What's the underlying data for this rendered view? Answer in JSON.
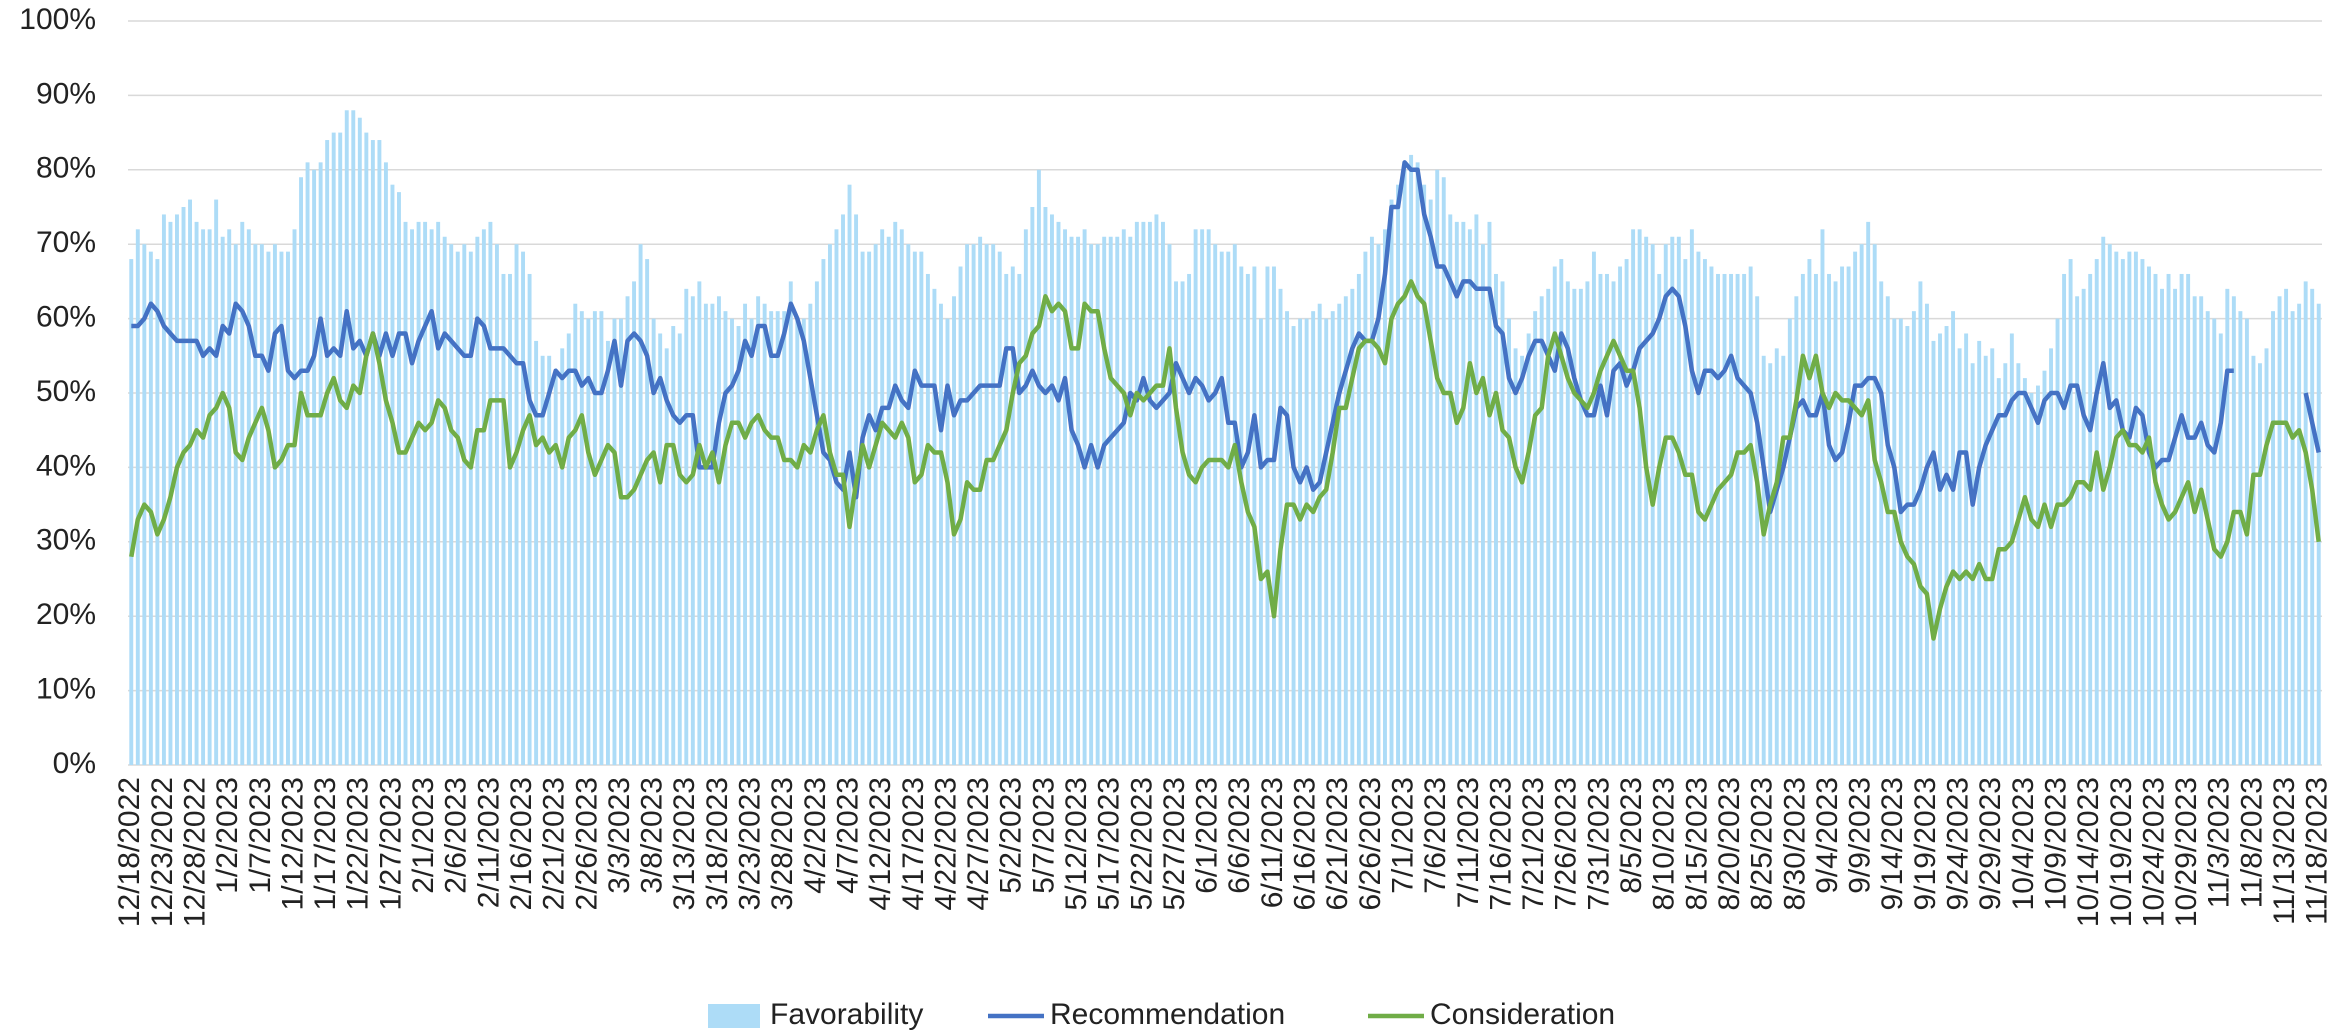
{
  "chart_data": {
    "type": "bar-line",
    "categories": [
      "12/18/2022",
      null,
      null,
      null,
      null,
      "12/23/2022",
      null,
      null,
      null,
      null,
      "12/28/2022",
      null,
      null,
      null,
      null,
      "1/2/2023",
      null,
      null,
      null,
      null,
      "1/7/2023",
      null,
      null,
      null,
      null,
      "1/12/2023",
      null,
      null,
      null,
      null,
      "1/17/2023",
      null,
      null,
      null,
      null,
      "1/22/2023",
      null,
      null,
      null,
      null,
      "1/27/2023",
      null,
      null,
      null,
      null,
      "2/1/2023",
      null,
      null,
      null,
      null,
      "2/6/2023",
      null,
      null,
      null,
      null,
      "2/11/2023",
      null,
      null,
      null,
      null,
      "2/16/2023",
      null,
      null,
      null,
      null,
      "2/21/2023",
      null,
      null,
      null,
      null,
      "2/26/2023",
      null,
      null,
      null,
      null,
      "3/3/2023",
      null,
      null,
      null,
      null,
      "3/8/2023",
      null,
      null,
      null,
      null,
      "3/13/2023",
      null,
      null,
      null,
      null,
      "3/18/2023",
      null,
      null,
      null,
      null,
      "3/23/2023",
      null,
      null,
      null,
      null,
      "3/28/2023",
      null,
      null,
      null,
      null,
      "4/2/2023",
      null,
      null,
      null,
      null,
      "4/7/2023",
      null,
      null,
      null,
      null,
      "4/12/2023",
      null,
      null,
      null,
      null,
      "4/17/2023",
      null,
      null,
      null,
      null,
      "4/22/2023",
      null,
      null,
      null,
      null,
      "4/27/2023",
      null,
      null,
      null,
      null,
      "5/2/2023",
      null,
      null,
      null,
      null,
      "5/7/2023",
      null,
      null,
      null,
      null,
      "5/12/2023",
      null,
      null,
      null,
      null,
      "5/17/2023",
      null,
      null,
      null,
      null,
      "5/22/2023",
      null,
      null,
      null,
      null,
      "5/27/2023",
      null,
      null,
      null,
      null,
      "6/1/2023",
      null,
      null,
      null,
      null,
      "6/6/2023",
      null,
      null,
      null,
      null,
      "6/11/2023",
      null,
      null,
      null,
      null,
      "6/16/2023",
      null,
      null,
      null,
      null,
      "6/21/2023",
      null,
      null,
      null,
      null,
      "6/26/2023",
      null,
      null,
      null,
      null,
      "7/1/2023",
      null,
      null,
      null,
      null,
      "7/6/2023",
      null,
      null,
      null,
      null,
      "7/11/2023",
      null,
      null,
      null,
      null,
      "7/16/2023",
      null,
      null,
      null,
      null,
      "7/21/2023",
      null,
      null,
      null,
      null,
      "7/26/2023",
      null,
      null,
      null,
      null,
      "7/31/2023",
      null,
      null,
      null,
      null,
      "8/5/2023",
      null,
      null,
      null,
      null,
      "8/10/2023",
      null,
      null,
      null,
      null,
      "8/15/2023",
      null,
      null,
      null,
      null,
      "8/20/2023",
      null,
      null,
      null,
      null,
      "8/25/2023",
      null,
      null,
      null,
      null,
      "8/30/2023",
      null,
      null,
      null,
      null,
      "9/4/2023",
      null,
      null,
      null,
      null,
      "9/9/2023",
      null,
      null,
      null,
      null,
      "9/14/2023",
      null,
      null,
      null,
      null,
      "9/19/2023",
      null,
      null,
      null,
      null,
      "9/24/2023",
      null,
      null,
      null,
      null,
      "9/29/2023",
      null,
      null,
      null,
      null,
      "10/4/2023",
      null,
      null,
      null,
      null,
      "10/9/2023",
      null,
      null,
      null,
      null,
      "10/14/2023",
      null,
      null,
      null,
      null,
      "10/19/2023",
      null,
      null,
      null,
      null,
      "10/24/2023",
      null,
      null,
      null,
      null,
      "10/29/2023",
      null,
      null,
      null,
      null,
      "11/3/2023",
      null,
      null,
      null,
      null,
      "11/8/2023",
      null,
      null,
      null,
      null,
      "11/13/2023",
      null,
      null,
      null,
      null,
      "11/18/2023"
    ],
    "series": [
      {
        "name": "Favorability",
        "kind": "bar",
        "color": "#addcf7",
        "values": [
          68,
          72,
          70,
          69,
          68,
          74,
          73,
          74,
          75,
          76,
          73,
          72,
          72,
          76,
          71,
          72,
          70,
          73,
          72,
          70,
          70,
          69,
          70,
          69,
          69,
          72,
          79,
          81,
          80,
          81,
          84,
          85,
          85,
          88,
          88,
          87,
          85,
          84,
          84,
          81,
          78,
          77,
          73,
          72,
          73,
          73,
          72,
          73,
          71,
          70,
          69,
          70,
          69,
          71,
          72,
          73,
          70,
          66,
          66,
          70,
          69,
          66,
          57,
          55,
          55,
          53,
          56,
          58,
          62,
          61,
          60,
          61,
          61,
          57,
          60,
          60,
          63,
          65,
          70,
          68,
          60,
          58,
          56,
          59,
          58,
          64,
          63,
          65,
          62,
          62,
          63,
          61,
          60,
          59,
          62,
          60,
          63,
          62,
          61,
          61,
          61,
          65,
          60,
          60,
          62,
          65,
          68,
          70,
          72,
          74,
          78,
          74,
          69,
          69,
          70,
          72,
          71,
          73,
          72,
          70,
          69,
          69,
          66,
          64,
          62,
          60,
          63,
          67,
          70,
          70,
          71,
          70,
          70,
          69,
          66,
          67,
          66,
          72,
          75,
          80,
          75,
          74,
          73,
          72,
          71,
          71,
          72,
          70,
          70,
          71,
          71,
          71,
          72,
          71,
          73,
          73,
          73,
          74,
          73,
          70,
          65,
          65,
          66,
          72,
          72,
          72,
          70,
          69,
          69,
          70,
          67,
          66,
          67,
          60,
          67,
          67,
          64,
          61,
          59,
          60,
          60,
          61,
          62,
          60,
          61,
          62,
          63,
          64,
          66,
          69,
          71,
          70,
          72,
          76,
          78,
          80,
          82,
          81,
          78,
          76,
          80,
          79,
          74,
          73,
          73,
          72,
          74,
          70,
          73,
          66,
          65,
          60,
          56,
          55,
          58,
          61,
          63,
          64,
          67,
          68,
          65,
          64,
          64,
          65,
          69,
          66,
          66,
          65,
          67,
          68,
          72,
          72,
          71,
          70,
          66,
          70,
          71,
          71,
          68,
          72,
          69,
          68,
          67,
          66,
          66,
          66,
          66,
          66,
          67,
          63,
          55,
          54,
          56,
          55,
          60,
          63,
          66,
          68,
          66,
          72,
          66,
          65,
          67,
          67,
          69,
          70,
          73,
          70,
          65,
          63,
          60,
          60,
          59,
          61,
          65,
          62,
          57,
          58,
          59,
          61,
          56,
          58,
          54,
          57,
          55,
          56,
          52,
          54,
          58,
          54,
          52,
          50,
          51,
          53,
          56,
          60,
          66,
          68,
          63,
          64,
          66,
          68,
          71,
          70,
          69,
          68,
          69,
          69,
          68,
          67,
          66,
          64,
          66,
          64,
          66,
          66,
          63,
          63,
          61,
          60,
          58,
          64,
          63,
          61,
          60,
          55,
          54,
          56,
          61,
          63,
          64,
          61,
          62,
          65,
          64,
          62
        ]
      },
      {
        "name": "Recommendation",
        "kind": "line",
        "color": "#4472c4",
        "values": [
          59,
          59,
          60,
          62,
          61,
          59,
          58,
          57,
          57,
          57,
          57,
          55,
          56,
          55,
          59,
          58,
          62,
          61,
          59,
          55,
          55,
          53,
          58,
          59,
          53,
          52,
          53,
          53,
          55,
          60,
          55,
          56,
          55,
          61,
          56,
          57,
          55,
          58,
          55,
          58,
          55,
          58,
          58,
          54,
          57,
          59,
          61,
          56,
          58,
          57,
          56,
          55,
          55,
          60,
          59,
          56,
          56,
          56,
          55,
          54,
          54,
          49,
          47,
          47,
          50,
          53,
          52,
          53,
          53,
          51,
          52,
          50,
          50,
          53,
          57,
          51,
          57,
          58,
          57,
          55,
          50,
          52,
          49,
          47,
          46,
          47,
          47,
          40,
          40,
          40,
          46,
          50,
          51,
          53,
          57,
          55,
          59,
          59,
          55,
          55,
          58,
          62,
          60,
          57,
          52,
          47,
          42,
          41,
          38,
          37,
          42,
          36,
          44,
          47,
          45,
          48,
          48,
          51,
          49,
          48,
          53,
          51,
          51,
          51,
          45,
          51,
          47,
          49,
          49,
          50,
          51,
          51,
          51,
          51,
          56,
          56,
          50,
          51,
          53,
          51,
          50,
          51,
          49,
          52,
          45,
          43,
          40,
          43,
          40,
          43,
          44,
          45,
          46,
          50,
          49,
          52,
          49,
          48,
          49,
          50,
          54,
          52,
          50,
          52,
          51,
          49,
          50,
          52,
          46,
          46,
          40,
          42,
          47,
          40,
          41,
          41,
          48,
          47,
          40,
          38,
          40,
          37,
          38,
          42,
          46,
          50,
          53,
          56,
          58,
          57,
          57,
          60,
          66,
          75,
          75,
          81,
          80,
          80,
          74,
          71,
          67,
          67,
          65,
          63,
          65,
          65,
          64,
          64,
          64,
          59,
          58,
          52,
          50,
          52,
          55,
          57,
          57,
          55,
          53,
          58,
          56,
          52,
          49,
          47,
          47,
          51,
          47,
          53,
          54,
          51,
          53,
          56,
          57,
          58,
          60,
          63,
          64,
          63,
          59,
          53,
          50,
          53,
          53,
          52,
          53,
          55,
          52,
          51,
          50,
          46,
          40,
          34,
          37,
          40,
          44,
          48,
          49,
          47,
          47,
          50,
          43,
          41,
          42,
          46,
          51,
          51,
          52,
          52,
          50,
          43,
          40,
          34,
          35,
          35,
          37,
          40,
          42,
          37,
          39,
          37,
          42,
          42,
          35,
          40,
          43,
          45,
          47,
          47,
          49,
          50,
          50,
          48,
          46,
          49,
          50,
          50,
          48,
          51,
          51,
          47,
          45,
          50,
          54,
          48,
          49,
          45,
          44,
          48,
          47,
          42,
          40,
          41,
          41,
          44,
          47,
          44,
          44,
          46,
          43,
          42,
          46,
          53,
          53,
          null,
          null,
          null,
          null,
          null,
          null,
          null,
          null,
          null,
          null,
          50,
          46,
          42
        ]
      },
      {
        "name": "Consideration",
        "kind": "line",
        "color": "#70ad47",
        "values": [
          28,
          33,
          35,
          34,
          31,
          33,
          36,
          40,
          42,
          43,
          45,
          44,
          47,
          48,
          50,
          48,
          42,
          41,
          44,
          46,
          48,
          45,
          40,
          41,
          43,
          43,
          50,
          47,
          47,
          47,
          50,
          52,
          49,
          48,
          51,
          50,
          55,
          58,
          54,
          49,
          46,
          42,
          42,
          44,
          46,
          45,
          46,
          49,
          48,
          45,
          44,
          41,
          40,
          45,
          45,
          49,
          49,
          49,
          40,
          42,
          45,
          47,
          43,
          44,
          42,
          43,
          40,
          44,
          45,
          47,
          42,
          39,
          41,
          43,
          42,
          36,
          36,
          37,
          39,
          41,
          42,
          38,
          43,
          43,
          39,
          38,
          39,
          43,
          40,
          42,
          38,
          43,
          46,
          46,
          44,
          46,
          47,
          45,
          44,
          44,
          41,
          41,
          40,
          43,
          42,
          45,
          47,
          42,
          39,
          39,
          32,
          38,
          43,
          40,
          43,
          46,
          45,
          44,
          46,
          44,
          38,
          39,
          43,
          42,
          42,
          38,
          31,
          33,
          38,
          37,
          37,
          41,
          41,
          43,
          45,
          50,
          54,
          55,
          58,
          59,
          63,
          61,
          62,
          61,
          56,
          56,
          62,
          61,
          61,
          56,
          52,
          51,
          50,
          47,
          50,
          49,
          50,
          51,
          51,
          56,
          48,
          42,
          39,
          38,
          40,
          41,
          41,
          41,
          40,
          43,
          38,
          34,
          32,
          25,
          26,
          20,
          29,
          35,
          35,
          33,
          35,
          34,
          36,
          37,
          42,
          48,
          48,
          52,
          56,
          57,
          57,
          56,
          54,
          60,
          62,
          63,
          65,
          63,
          62,
          57,
          52,
          50,
          50,
          46,
          48,
          54,
          50,
          52,
          47,
          50,
          45,
          44,
          40,
          38,
          42,
          47,
          48,
          55,
          58,
          55,
          52,
          50,
          49,
          48,
          50,
          53,
          55,
          57,
          55,
          53,
          53,
          48,
          40,
          35,
          40,
          44,
          44,
          42,
          39,
          39,
          34,
          33,
          35,
          37,
          38,
          39,
          42,
          42,
          43,
          38,
          31,
          35,
          38,
          44,
          44,
          49,
          55,
          52,
          55,
          50,
          48,
          50,
          49,
          49,
          48,
          47,
          49,
          41,
          38,
          34,
          34,
          30,
          28,
          27,
          24,
          23,
          17,
          21,
          24,
          26,
          25,
          26,
          25,
          27,
          25,
          25,
          29,
          29,
          30,
          33,
          36,
          33,
          32,
          35,
          32,
          35,
          35,
          36,
          38,
          38,
          37,
          42,
          37,
          40,
          44,
          45,
          43,
          43,
          42,
          44,
          38,
          35,
          33,
          34,
          36,
          38,
          34,
          37,
          33,
          29,
          28,
          30,
          34,
          34,
          31,
          39,
          39,
          43,
          46,
          46,
          46,
          44,
          45,
          42,
          37,
          30
        ]
      }
    ],
    "ylim": [
      0,
      100
    ],
    "yticks": [
      {
        "value": 0,
        "label": "0%"
      },
      {
        "value": 10,
        "label": "10%"
      },
      {
        "value": 20,
        "label": "20%"
      },
      {
        "value": 30,
        "label": "30%"
      },
      {
        "value": 40,
        "label": "40%"
      },
      {
        "value": 50,
        "label": "50%"
      },
      {
        "value": 60,
        "label": "60%"
      },
      {
        "value": 70,
        "label": "70%"
      },
      {
        "value": 80,
        "label": "80%"
      },
      {
        "value": 90,
        "label": "90%"
      },
      {
        "value": 100,
        "label": "100%"
      }
    ],
    "grid": true,
    "legend": "bottom"
  }
}
